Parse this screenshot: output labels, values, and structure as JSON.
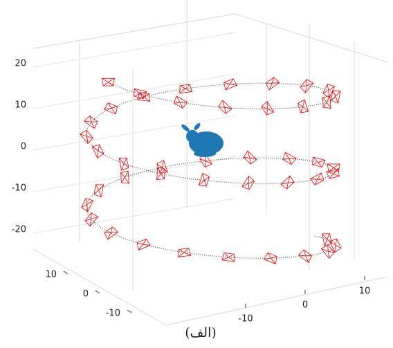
{
  "chart_data": {
    "type": "scatter3",
    "zticks": [
      -20,
      -10,
      0,
      10,
      20
    ],
    "xticks": [
      -10,
      0,
      10
    ],
    "yticks": [
      -10,
      0,
      10
    ],
    "caption": "(الف)",
    "camera_color": "#e8191b",
    "cloud_color": "#1f77b4"
  }
}
